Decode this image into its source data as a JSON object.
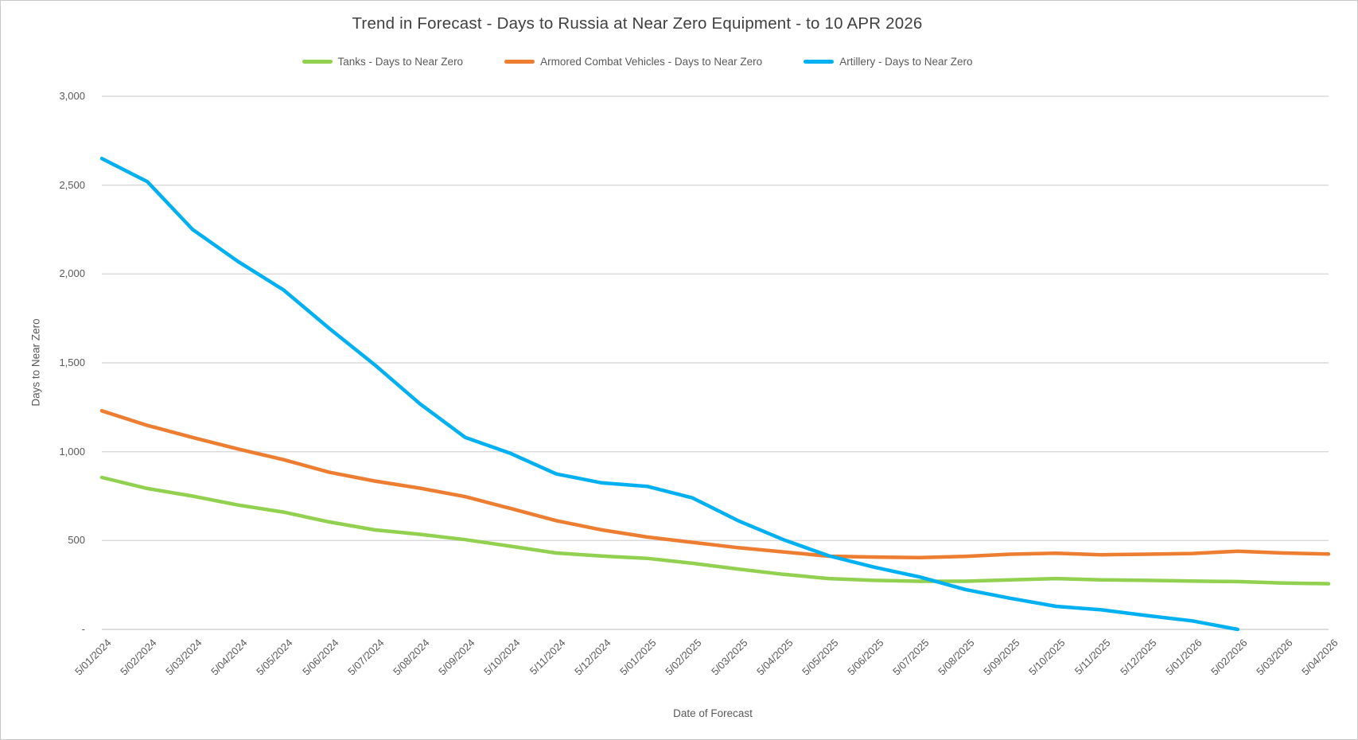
{
  "style": {
    "background": "#ffffff",
    "border_color": "#c9c9c9",
    "grid_color": "#d9d9d9",
    "axis_line_color": "#d0d0d0",
    "text_color": "#595959",
    "title_color": "#404040"
  },
  "chart_data": {
    "type": "line",
    "title": "Trend in Forecast - Days to Russia at Near Zero Equipment - to 10 APR 2026",
    "xlabel": "Date of Forecast",
    "ylabel": "Days to Near Zero",
    "ylim": [
      0,
      3000
    ],
    "ytick_interval": 500,
    "grid": true,
    "legend_position": "top",
    "yticks": [
      {
        "value": 0,
        "label": "-"
      },
      {
        "value": 500,
        "label": "500"
      },
      {
        "value": 1000,
        "label": "1,000"
      },
      {
        "value": 1500,
        "label": "1,500"
      },
      {
        "value": 2000,
        "label": "2,000"
      },
      {
        "value": 2500,
        "label": "2,500"
      },
      {
        "value": 3000,
        "label": "3,000"
      }
    ],
    "categories": [
      "5/01/2024",
      "5/02/2024",
      "5/03/2024",
      "5/04/2024",
      "5/05/2024",
      "5/06/2024",
      "5/07/2024",
      "5/08/2024",
      "5/09/2024",
      "5/10/2024",
      "5/11/2024",
      "5/12/2024",
      "5/01/2025",
      "5/02/2025",
      "5/03/2025",
      "5/04/2025",
      "5/05/2025",
      "5/06/2025",
      "5/07/2025",
      "5/08/2025",
      "5/09/2025",
      "5/10/2025",
      "5/11/2025",
      "5/12/2025",
      "5/01/2026",
      "5/02/2026",
      "5/03/2026",
      "5/04/2026"
    ],
    "series": [
      {
        "name": "Tanks - Days to Near Zero",
        "color": "#92D050",
        "values": [
          855,
          793,
          750,
          700,
          660,
          605,
          560,
          535,
          505,
          468,
          430,
          413,
          400,
          372,
          340,
          310,
          286,
          276,
          271,
          271,
          279,
          286,
          279,
          276,
          272,
          269,
          261,
          257
        ]
      },
      {
        "name": "Armored Combat Vehicles - Days to Near Zero",
        "color": "#ED7D31",
        "values": [
          1230,
          1148,
          1080,
          1015,
          955,
          885,
          835,
          795,
          747,
          680,
          612,
          560,
          520,
          490,
          460,
          436,
          412,
          407,
          404,
          411,
          423,
          429,
          420,
          423,
          427,
          440,
          430,
          424
        ]
      },
      {
        "name": "Artillery - Days to Near Zero",
        "color": "#00B0F0",
        "values": [
          2650,
          2520,
          2250,
          2070,
          1910,
          1695,
          1490,
          1270,
          1080,
          990,
          875,
          825,
          805,
          740,
          612,
          505,
          414,
          350,
          295,
          225,
          175,
          130,
          110,
          78,
          48,
          0,
          null,
          null
        ]
      }
    ]
  }
}
